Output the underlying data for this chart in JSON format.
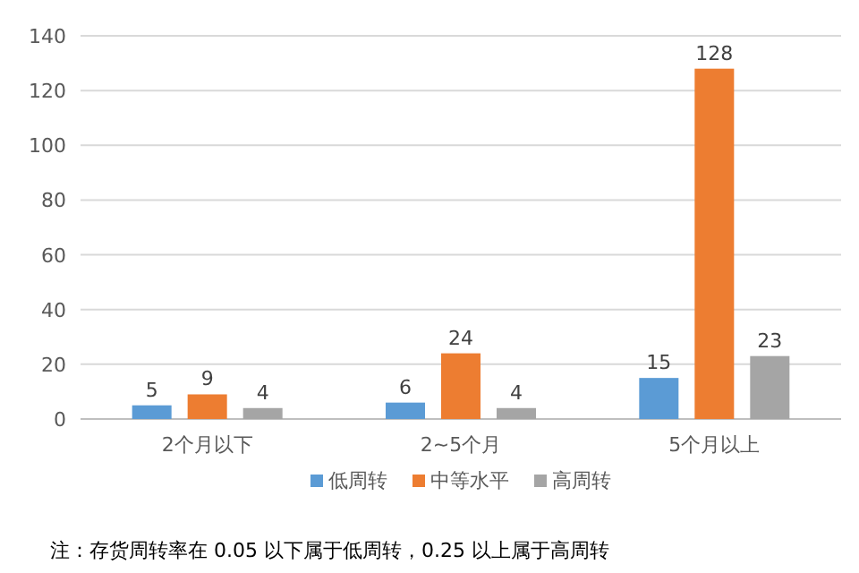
{
  "chart_data": {
    "type": "bar",
    "categories": [
      "2个月以下",
      "2~5个月",
      "5个月以上"
    ],
    "series": [
      {
        "name": "低周转",
        "color": "#5b9bd5",
        "values": [
          5,
          6,
          15
        ]
      },
      {
        "name": "中等水平",
        "color": "#ed7d31",
        "values": [
          9,
          24,
          128
        ]
      },
      {
        "name": "高周转",
        "color": "#a5a5a5",
        "values": [
          4,
          4,
          23
        ]
      }
    ],
    "ylim": [
      0,
      140
    ],
    "yticks": [
      0,
      20,
      40,
      60,
      80,
      100,
      120,
      140
    ],
    "grid": "y",
    "legend": "bottom",
    "data_labels": true,
    "annotations": [
      "注：存货周转率在 0.05 以下属于低周转，0.25 以上属于高周转"
    ]
  }
}
